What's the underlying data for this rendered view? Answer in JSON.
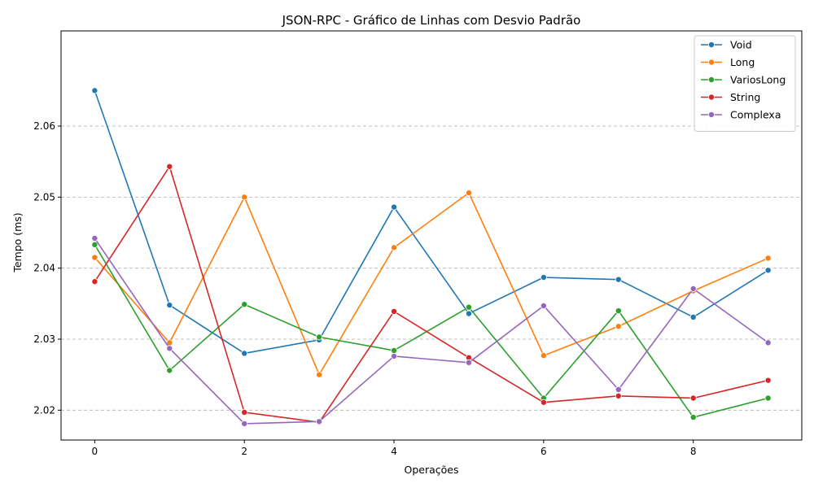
{
  "chart_data": {
    "type": "line",
    "title": "JSON-RPC - Gráfico de Linhas com Desvio Padrão",
    "xlabel": "Operações",
    "ylabel": "Tempo (ms)",
    "x": [
      0,
      1,
      2,
      3,
      4,
      5,
      6,
      7,
      8,
      9
    ],
    "xticks": [
      "0",
      "2",
      "4",
      "6",
      "8"
    ],
    "yticks": [
      "2.02",
      "2.03",
      "2.04",
      "2.05",
      "2.06"
    ],
    "xlim": [
      -0.45,
      9.45
    ],
    "ylim": [
      2.0158,
      2.0734
    ],
    "grid": "y-dashed",
    "legend_position": "top-right",
    "series": [
      {
        "name": "Void",
        "color": "#1f77b4",
        "values": [
          2.065,
          2.0348,
          2.028,
          2.0299,
          2.0486,
          2.0336,
          2.0387,
          2.0384,
          2.0331,
          2.0397
        ]
      },
      {
        "name": "Long",
        "color": "#ff7f0e",
        "values": [
          2.0415,
          2.0295,
          2.05,
          2.025,
          2.0429,
          2.0506,
          2.0277,
          2.0318,
          2.0368,
          2.0414
        ]
      },
      {
        "name": "VariosLong",
        "color": "#2ca02c",
        "values": [
          2.0433,
          2.0256,
          2.0349,
          2.0303,
          2.0284,
          2.0345,
          2.0217,
          2.034,
          2.019,
          2.0217
        ]
      },
      {
        "name": "String",
        "color": "#d62728",
        "values": [
          2.0381,
          2.0543,
          2.0197,
          2.0183,
          2.0339,
          2.0274,
          2.0211,
          2.022,
          2.0217,
          2.0242
        ]
      },
      {
        "name": "Complexa",
        "color": "#9467bd",
        "values": [
          2.0442,
          2.0287,
          2.0181,
          2.0184,
          2.0276,
          2.0267,
          2.0347,
          2.0229,
          2.0371,
          2.0295
        ]
      }
    ]
  }
}
